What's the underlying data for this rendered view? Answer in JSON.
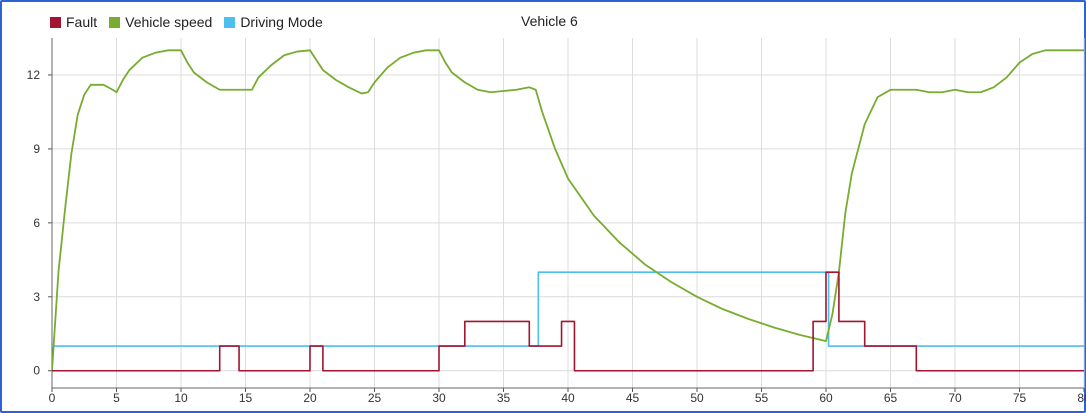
{
  "chart_data": {
    "type": "line",
    "title": "Vehicle 6",
    "xlabel": "",
    "ylabel": "",
    "xlim": [
      0,
      80
    ],
    "ylim": [
      -0.7,
      13.5
    ],
    "x_ticks": [
      0,
      5,
      10,
      15,
      20,
      25,
      30,
      35,
      40,
      45,
      50,
      55,
      60,
      65,
      70,
      75,
      80
    ],
    "y_ticks": [
      0,
      3,
      6,
      9,
      12
    ],
    "grid": true,
    "legend_position": "top-left",
    "series": [
      {
        "name": "Fault",
        "color": "#a2142f",
        "step": true,
        "points": [
          [
            0,
            0
          ],
          [
            13,
            0
          ],
          [
            13,
            1
          ],
          [
            14.5,
            1
          ],
          [
            14.5,
            0
          ],
          [
            20,
            0
          ],
          [
            20,
            1
          ],
          [
            21,
            1
          ],
          [
            21,
            0
          ],
          [
            30,
            0
          ],
          [
            30,
            1
          ],
          [
            32,
            1
          ],
          [
            32,
            2
          ],
          [
            37,
            2
          ],
          [
            37,
            1
          ],
          [
            39.5,
            1
          ],
          [
            39.5,
            2
          ],
          [
            40.5,
            2
          ],
          [
            40.5,
            0
          ],
          [
            59,
            0
          ],
          [
            59,
            2
          ],
          [
            60,
            2
          ],
          [
            60,
            4
          ],
          [
            61,
            4
          ],
          [
            61,
            2
          ],
          [
            63,
            2
          ],
          [
            63,
            1
          ],
          [
            67,
            1
          ],
          [
            67,
            0
          ],
          [
            80,
            0
          ]
        ]
      },
      {
        "name": "Vehicle speed",
        "color": "#77ac30",
        "step": false,
        "points": [
          [
            0,
            0
          ],
          [
            0.5,
            4
          ],
          [
            1,
            6.5
          ],
          [
            1.5,
            8.8
          ],
          [
            2,
            10.4
          ],
          [
            2.5,
            11.2
          ],
          [
            3,
            11.6
          ],
          [
            4,
            11.6
          ],
          [
            4.7,
            11.4
          ],
          [
            5,
            11.3
          ],
          [
            5.5,
            11.8
          ],
          [
            6,
            12.2
          ],
          [
            7,
            12.7
          ],
          [
            8,
            12.9
          ],
          [
            9,
            13
          ],
          [
            10,
            13
          ],
          [
            10.5,
            12.5
          ],
          [
            11,
            12.1
          ],
          [
            12,
            11.7
          ],
          [
            13,
            11.4
          ],
          [
            14,
            11.4
          ],
          [
            15,
            11.4
          ],
          [
            15.5,
            11.4
          ],
          [
            16,
            11.9
          ],
          [
            17,
            12.4
          ],
          [
            18,
            12.8
          ],
          [
            19,
            12.95
          ],
          [
            20,
            13
          ],
          [
            20.5,
            12.6
          ],
          [
            21,
            12.2
          ],
          [
            22,
            11.8
          ],
          [
            23,
            11.5
          ],
          [
            24,
            11.25
          ],
          [
            24.5,
            11.3
          ],
          [
            25,
            11.7
          ],
          [
            26,
            12.3
          ],
          [
            27,
            12.7
          ],
          [
            28,
            12.9
          ],
          [
            29,
            13
          ],
          [
            30,
            13
          ],
          [
            30.5,
            12.5
          ],
          [
            31,
            12.1
          ],
          [
            32,
            11.7
          ],
          [
            33,
            11.4
          ],
          [
            34,
            11.3
          ],
          [
            35,
            11.35
          ],
          [
            36,
            11.4
          ],
          [
            37,
            11.5
          ],
          [
            37.5,
            11.4
          ],
          [
            38,
            10.5
          ],
          [
            39,
            9
          ],
          [
            40,
            7.8
          ],
          [
            42,
            6.3
          ],
          [
            44,
            5.2
          ],
          [
            46,
            4.3
          ],
          [
            48,
            3.6
          ],
          [
            50,
            3
          ],
          [
            52,
            2.5
          ],
          [
            54,
            2.1
          ],
          [
            56,
            1.75
          ],
          [
            58,
            1.45
          ],
          [
            60,
            1.2
          ],
          [
            60.5,
            2.3
          ],
          [
            61,
            4
          ],
          [
            61.5,
            6.4
          ],
          [
            62,
            8
          ],
          [
            63,
            10
          ],
          [
            64,
            11.1
          ],
          [
            65,
            11.4
          ],
          [
            66,
            11.4
          ],
          [
            67,
            11.4
          ],
          [
            68,
            11.3
          ],
          [
            69,
            11.3
          ],
          [
            70,
            11.4
          ],
          [
            71,
            11.3
          ],
          [
            72,
            11.3
          ],
          [
            73,
            11.5
          ],
          [
            74,
            11.9
          ],
          [
            75,
            12.5
          ],
          [
            76,
            12.85
          ],
          [
            77,
            13
          ],
          [
            80,
            13
          ]
        ]
      },
      {
        "name": "Driving Mode",
        "color": "#4dbeee",
        "step": true,
        "points": [
          [
            0,
            1
          ],
          [
            37.7,
            1
          ],
          [
            37.7,
            4
          ],
          [
            60.2,
            4
          ],
          [
            60.2,
            1
          ],
          [
            80,
            1
          ]
        ]
      }
    ]
  }
}
